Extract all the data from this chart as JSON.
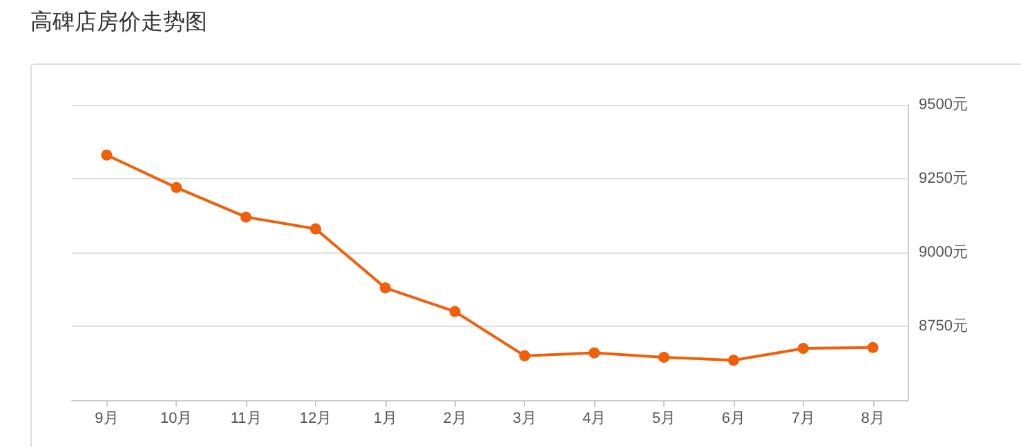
{
  "chart_data": {
    "type": "line",
    "title": "高碑店房价走势图",
    "categories": [
      "9月",
      "10月",
      "11月",
      "12月",
      "1月",
      "2月",
      "3月",
      "4月",
      "5月",
      "6月",
      "7月",
      "8月"
    ],
    "series": [
      {
        "color": "#f0600a",
        "values": [
          9330,
          9220,
          9120,
          9080,
          8880,
          8800,
          8650,
          8660,
          8645,
          8635,
          8675,
          8678
        ]
      }
    ],
    "ylim": [
      8500,
      9500
    ],
    "yticks": [
      {
        "value": 8500,
        "label": null
      },
      {
        "value": 8750,
        "label": "8750元"
      },
      {
        "value": 9000,
        "label": "9000元"
      },
      {
        "value": 9250,
        "label": "9250元"
      },
      {
        "value": 9500,
        "label": "9500元"
      }
    ],
    "grid": "y",
    "marker": "circle",
    "line_style": "solid"
  }
}
